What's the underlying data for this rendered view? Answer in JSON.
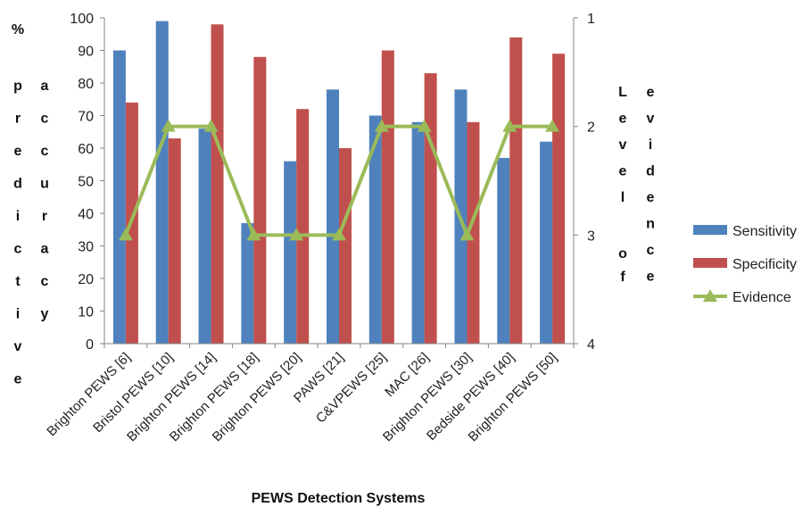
{
  "chart_data": {
    "type": "bar",
    "categories": [
      "Brighton PEWS [6]",
      "Bristol PEWS [10]",
      "Brighton PEWS [14]",
      "Brighton PEWS [18]",
      "Brighton PEWS [20]",
      "PAWS [21]",
      "C&VPEWS [25]",
      "MAC [26]",
      "Brighton PEWS [30]",
      "Bedside PEWS [40]",
      "Brighton PEWS [50]"
    ],
    "series": [
      {
        "name": "Sensitivity",
        "type": "bar",
        "axis": "left",
        "color": "#4F81BD",
        "values": [
          90,
          99,
          66,
          37,
          56,
          78,
          70,
          68,
          78,
          57,
          62
        ]
      },
      {
        "name": "Specificity",
        "type": "bar",
        "axis": "left",
        "color": "#C0504D",
        "values": [
          74,
          63,
          98,
          88,
          72,
          60,
          90,
          83,
          68,
          94,
          89
        ]
      },
      {
        "name": "Evidence",
        "type": "line",
        "marker": "triangle",
        "axis": "right",
        "color": "#9BBB59",
        "values": [
          3,
          2,
          2,
          3,
          3,
          3,
          2,
          2,
          3,
          2,
          2
        ]
      }
    ],
    "xlabel": "PEWS Detection Systems",
    "ylabel_left": [
      "%",
      "p r e d i c t i v e",
      "a c c u r a c y"
    ],
    "ylabel_right": [
      "L e v e l",
      "o f",
      "e v i d e n c e"
    ],
    "ylim_left": [
      0,
      100
    ],
    "yticks_left": [
      0,
      10,
      20,
      30,
      40,
      50,
      60,
      70,
      80,
      90,
      100
    ],
    "ylim_right": [
      1,
      4
    ],
    "yticks_right": [
      1,
      2,
      3,
      4
    ],
    "right_axis_inverted": true,
    "grid": false,
    "legend_position": "right"
  }
}
